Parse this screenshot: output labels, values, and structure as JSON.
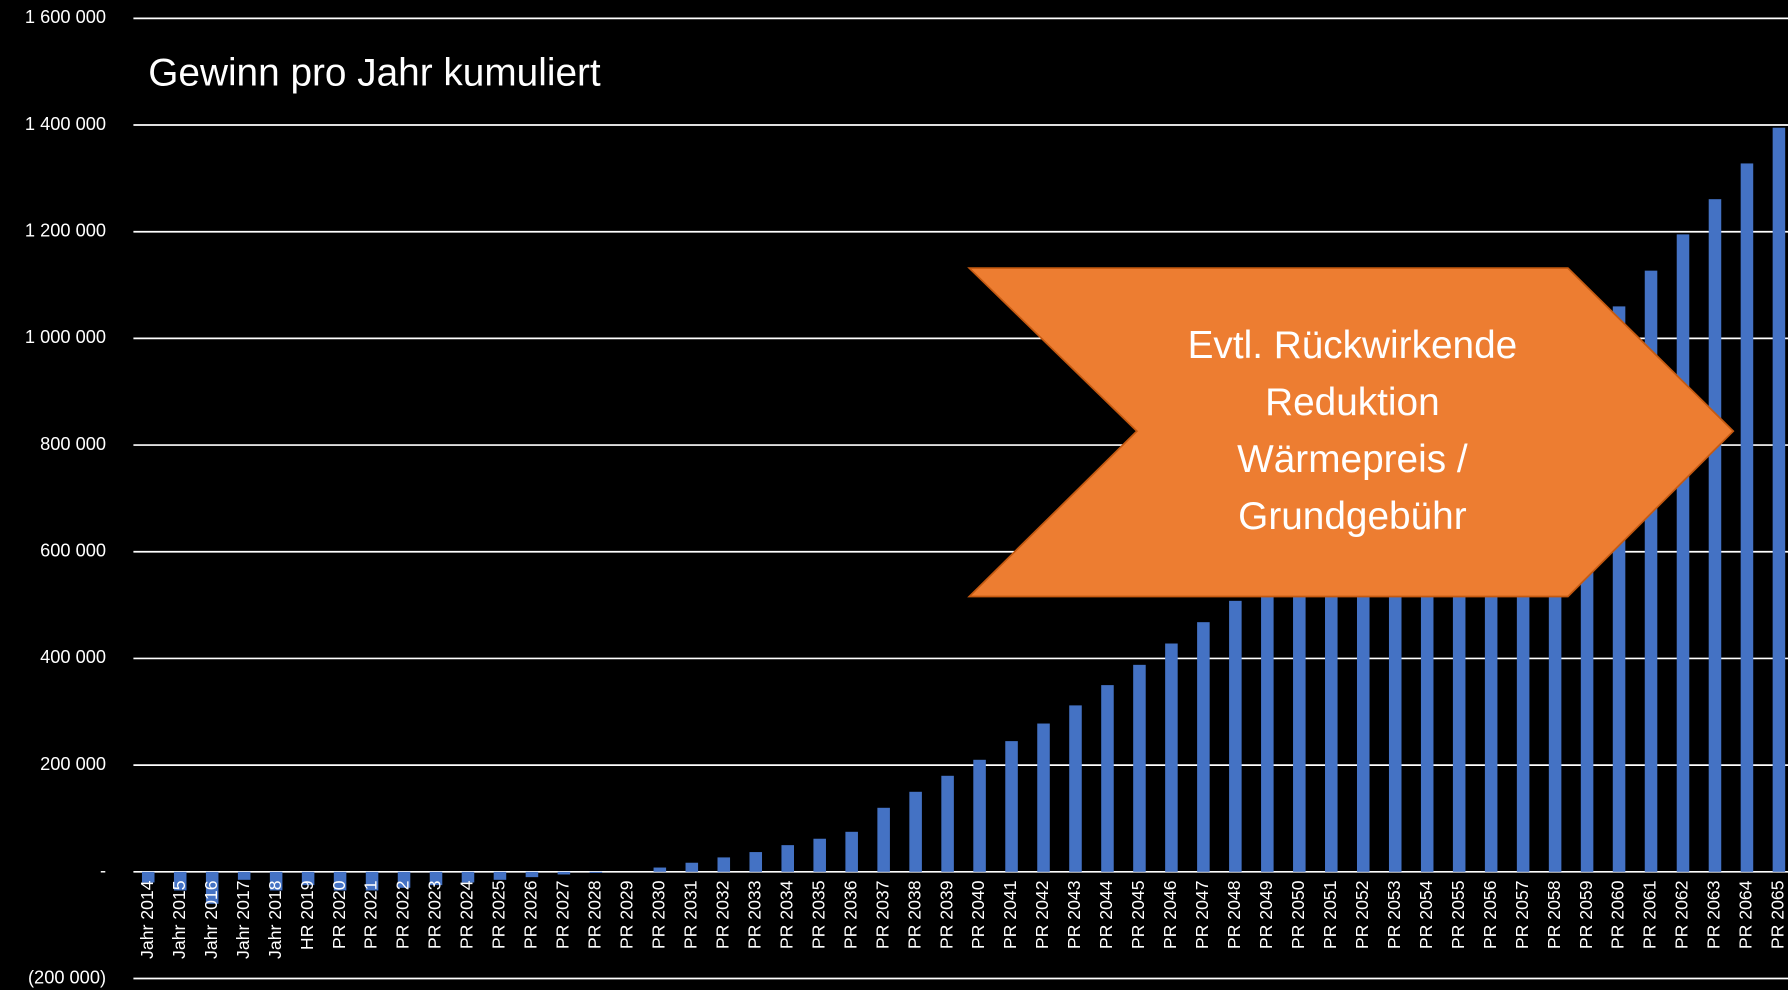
{
  "chart_data": {
    "type": "bar",
    "title": "Gewinn pro Jahr kumuliert",
    "annotation": [
      "Evtl. Rückwirkende",
      "Reduktion",
      "Wärmepreis /",
      "Grundgebühr"
    ],
    "categories": [
      "Jahr 2014",
      "Jahr 2015",
      "Jahr 2016",
      "Jahr 2017",
      "Jahr 2018",
      "HR 2019",
      "PR 2020",
      "PR 2021",
      "PR 2022",
      "PR 2023",
      "PR 2024",
      "PR 2025",
      "PR 2026",
      "PR 2027",
      "PR 2028",
      "PR 2029",
      "PR 2030",
      "PR 2031",
      "PR 2032",
      "PR 2033",
      "PR 2034",
      "PR 2035",
      "PR 2036",
      "PR 2037",
      "PR 2038",
      "PR 2039",
      "PR 2040",
      "PR 2041",
      "PR 2042",
      "PR 2043",
      "PR 2044",
      "PR 2045",
      "PR 2046",
      "PR 2047",
      "PR 2048",
      "PR 2049",
      "PR 2050",
      "PR 2051",
      "PR 2052",
      "PR 2053",
      "PR 2054",
      "PR 2055",
      "PR 2056",
      "PR 2057",
      "PR 2058",
      "PR 2059",
      "PR 2060",
      "PR 2061",
      "PR 2062",
      "PR 2063",
      "PR 2064",
      "PR 2065"
    ],
    "values": [
      -20000,
      -35000,
      -60000,
      -15000,
      -35000,
      -25000,
      -35000,
      -35000,
      -30000,
      -25000,
      -20000,
      -15000,
      -10000,
      -5000,
      -2000,
      0,
      8000,
      17000,
      27000,
      37000,
      50000,
      62000,
      75000,
      120000,
      150000,
      180000,
      210000,
      245000,
      278000,
      312000,
      350000,
      388000,
      428000,
      468000,
      508000,
      548000,
      590000,
      633000,
      677000,
      722000,
      768000,
      815000,
      862000,
      910000,
      959000,
      1009000,
      1060000,
      1127000,
      1195000,
      1261000,
      1328000,
      1395000
    ],
    "color": "#4472c4",
    "ylim": [
      -200000,
      1600000
    ],
    "yticks": [
      {
        "value": -200000,
        "label": "(200 000)"
      },
      {
        "value": 0,
        "label": "-"
      },
      {
        "value": 200000,
        "label": "200 000"
      },
      {
        "value": 400000,
        "label": "400 000"
      },
      {
        "value": 600000,
        "label": "600 000"
      },
      {
        "value": 800000,
        "label": "800 000"
      },
      {
        "value": 1000000,
        "label": "1 000 000"
      },
      {
        "value": 1200000,
        "label": "1 200 000"
      },
      {
        "value": 1400000,
        "label": "1 400 000"
      },
      {
        "value": 1600000,
        "label": "1 600 000"
      }
    ],
    "grid": true
  }
}
